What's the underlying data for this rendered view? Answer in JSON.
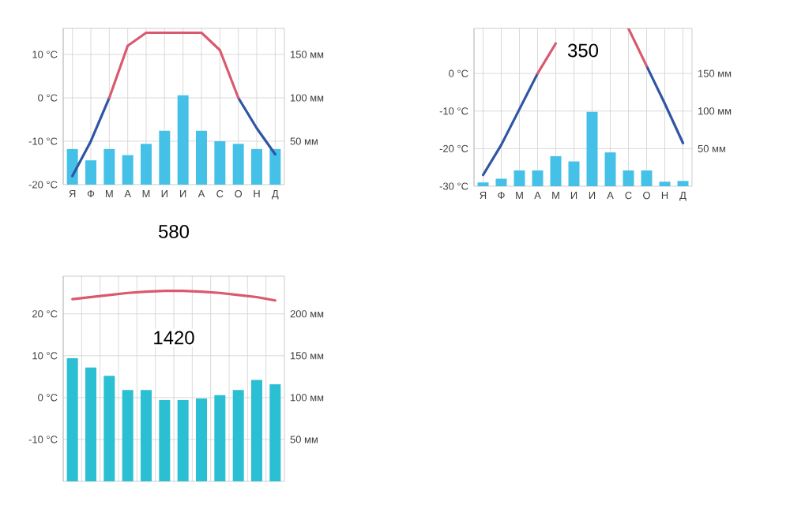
{
  "chart_data": [
    {
      "type": "bar",
      "categories": [
        "Я",
        "Ф",
        "М",
        "А",
        "М",
        "И",
        "И",
        "А",
        "С",
        "О",
        "Н",
        "Д"
      ],
      "grid": true,
      "ylim": [
        -20,
        16
      ],
      "yticks": [
        {
          "value": -20,
          "label": "-20 °C"
        },
        {
          "value": -10,
          "label": "-10 °C"
        },
        {
          "value": 0,
          "label": "0 °C"
        },
        {
          "value": 10,
          "label": "10 °C"
        }
      ],
      "y2lim": [
        0,
        180
      ],
      "y2ticks": [
        {
          "value": 50,
          "label": "50 мм"
        },
        {
          "value": 100,
          "label": "100 мм"
        },
        {
          "value": 150,
          "label": "150 мм"
        }
      ],
      "series": [
        {
          "type": "bar",
          "axis": "y2",
          "color": "#45c1e8",
          "values": [
            41,
            28,
            41,
            34,
            47,
            62,
            103,
            62,
            50,
            47,
            41,
            41
          ]
        },
        {
          "type": "line",
          "color": "#2f55a4",
          "values": [
            -18,
            -10,
            0,
            null,
            null,
            null,
            null,
            null,
            null,
            0,
            -7,
            -13
          ]
        },
        {
          "type": "line",
          "color": "#d95a6e",
          "values": [
            null,
            null,
            0,
            12,
            15,
            15,
            15,
            15,
            11,
            0,
            null,
            null
          ]
        }
      ],
      "annotations": [
        "580"
      ]
    },
    {
      "type": "bar",
      "categories": [
        "Я",
        "Ф",
        "М",
        "А",
        "М",
        "И",
        "И",
        "А",
        "С",
        "О",
        "Н",
        "Д"
      ],
      "grid": true,
      "ylim": [
        -30,
        12
      ],
      "yticks": [
        {
          "value": -30,
          "label": "-30 °C"
        },
        {
          "value": -20,
          "label": "-20 °C"
        },
        {
          "value": -10,
          "label": "-10 °C"
        },
        {
          "value": 0,
          "label": "0 °C"
        }
      ],
      "y2lim": [
        0,
        210
      ],
      "y2ticks": [
        {
          "value": 50,
          "label": "50 мм"
        },
        {
          "value": 100,
          "label": "100 мм"
        },
        {
          "value": 150,
          "label": "150 мм"
        }
      ],
      "series": [
        {
          "type": "bar",
          "axis": "y2",
          "color": "#45c1e8",
          "values": [
            5,
            10,
            21,
            21,
            40,
            33,
            99,
            45,
            21,
            21,
            6,
            7
          ]
        },
        {
          "type": "line",
          "color": "#2f55a4",
          "values": [
            -27,
            -19,
            -9.5,
            0,
            null,
            null,
            null,
            null,
            null,
            2,
            -8,
            -18.5
          ]
        },
        {
          "type": "line",
          "color": "#d95a6e",
          "values": [
            null,
            null,
            null,
            0,
            8,
            null,
            null,
            null,
            12,
            2,
            null,
            null
          ]
        }
      ],
      "annotations": [
        "350"
      ]
    },
    {
      "type": "bar",
      "categories": [
        null,
        null,
        null,
        null,
        null,
        null,
        null,
        null,
        null,
        null,
        null,
        null
      ],
      "grid": true,
      "ylim": [
        -20,
        29
      ],
      "yticks": [
        {
          "value": -10,
          "label": "-10 °C"
        },
        {
          "value": 0,
          "label": "0 °C"
        },
        {
          "value": 10,
          "label": "10 °C"
        },
        {
          "value": 20,
          "label": "20 °C"
        }
      ],
      "y2lim": [
        0,
        245
      ],
      "y2ticks": [
        {
          "value": 50,
          "label": "50 мм"
        },
        {
          "value": 100,
          "label": "100 мм"
        },
        {
          "value": 150,
          "label": "150 мм"
        },
        {
          "value": 200,
          "label": "200 мм"
        }
      ],
      "series": [
        {
          "type": "bar",
          "axis": "y2",
          "color": "#2bbfd3",
          "values": [
            147,
            136,
            126,
            109,
            109,
            97,
            97,
            99,
            103,
            109,
            121,
            116
          ]
        },
        {
          "type": "line",
          "color": "#d95a6e",
          "values": [
            23.5,
            24,
            24.5,
            25,
            25.3,
            25.5,
            25.5,
            25.3,
            25,
            24.5,
            24,
            23.2
          ]
        }
      ],
      "annotations": [
        "1420"
      ]
    }
  ]
}
